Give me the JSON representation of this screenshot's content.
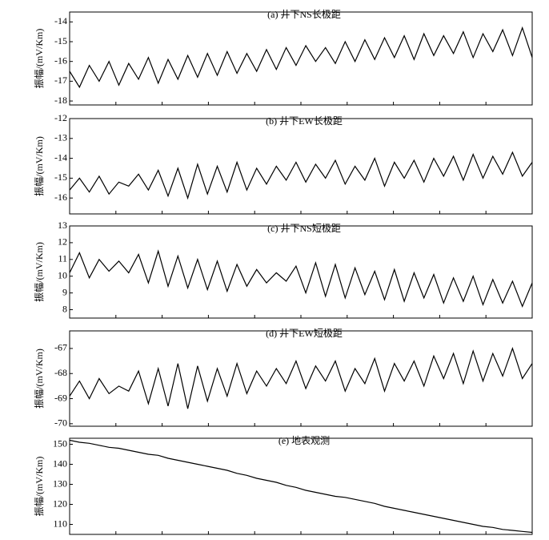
{
  "chart_data": [
    {
      "type": "line",
      "title": "(a) 井下NS长极距",
      "ylabel": "振幅/(mV/Km)",
      "color": "#000000",
      "ylim": [
        -18.2,
        -13.5
      ],
      "yticks": [
        -18,
        -17,
        -16,
        -15,
        -14
      ],
      "values": [
        -16.5,
        -17.3,
        -16.2,
        -17.0,
        -16.0,
        -17.2,
        -16.1,
        -16.9,
        -15.8,
        -17.1,
        -15.9,
        -16.9,
        -15.7,
        -16.8,
        -15.6,
        -16.7,
        -15.5,
        -16.6,
        -15.6,
        -16.5,
        -15.4,
        -16.4,
        -15.3,
        -16.2,
        -15.2,
        -16.0,
        -15.3,
        -16.1,
        -15.0,
        -16.0,
        -14.9,
        -15.9,
        -14.8,
        -15.8,
        -14.7,
        -15.9,
        -14.6,
        -15.7,
        -14.7,
        -15.6,
        -14.5,
        -15.8,
        -14.6,
        -15.5,
        -14.4,
        -15.7,
        -14.3,
        -15.8
      ]
    },
    {
      "type": "line",
      "title": "(b) 井下EW长极距",
      "ylabel": "振幅/(mV/Km)",
      "color": "#000000",
      "ylim": [
        -16.8,
        -12
      ],
      "yticks": [
        -16,
        -15,
        -14,
        -13,
        -12
      ],
      "values": [
        -15.6,
        -15.0,
        -15.7,
        -14.9,
        -15.8,
        -15.2,
        -15.4,
        -14.8,
        -15.6,
        -14.6,
        -15.9,
        -14.5,
        -16.0,
        -14.3,
        -15.8,
        -14.4,
        -15.7,
        -14.2,
        -15.6,
        -14.5,
        -15.3,
        -14.4,
        -15.1,
        -14.2,
        -15.2,
        -14.3,
        -15.0,
        -14.1,
        -15.3,
        -14.4,
        -15.1,
        -14.0,
        -15.4,
        -14.2,
        -15.0,
        -14.1,
        -15.2,
        -14.0,
        -14.9,
        -13.9,
        -15.1,
        -13.8,
        -15.0,
        -13.9,
        -14.8,
        -13.7,
        -14.9,
        -14.2
      ]
    },
    {
      "type": "line",
      "title": "(c) 井下NS短极距",
      "ylabel": "振幅/(mV/Km)",
      "color": "#000000",
      "ylim": [
        7.5,
        13
      ],
      "yticks": [
        8,
        9,
        10,
        11,
        12,
        13
      ],
      "values": [
        10.2,
        11.4,
        9.9,
        11.0,
        10.3,
        10.9,
        10.2,
        11.3,
        9.6,
        11.5,
        9.4,
        11.2,
        9.3,
        11.0,
        9.2,
        10.9,
        9.1,
        10.7,
        9.4,
        10.4,
        9.6,
        10.2,
        9.7,
        10.6,
        9.0,
        10.8,
        8.8,
        10.7,
        8.7,
        10.5,
        8.9,
        10.3,
        8.6,
        10.4,
        8.5,
        10.2,
        8.7,
        10.1,
        8.4,
        9.9,
        8.5,
        10.0,
        8.3,
        9.8,
        8.4,
        9.7,
        8.2,
        9.6
      ]
    },
    {
      "type": "line",
      "title": "(d) 井下EW短极距",
      "ylabel": "振幅/(mV/Km)",
      "color": "#000000",
      "ylim": [
        -70.1,
        -66.3
      ],
      "yticks": [
        -70,
        -69,
        -68,
        -67
      ],
      "values": [
        -68.9,
        -68.3,
        -69.0,
        -68.2,
        -68.8,
        -68.5,
        -68.7,
        -67.9,
        -69.2,
        -67.8,
        -69.3,
        -67.6,
        -69.4,
        -67.7,
        -69.1,
        -67.8,
        -68.9,
        -67.6,
        -68.8,
        -67.9,
        -68.5,
        -67.8,
        -68.4,
        -67.5,
        -68.6,
        -67.7,
        -68.3,
        -67.5,
        -68.7,
        -67.8,
        -68.4,
        -67.4,
        -68.7,
        -67.6,
        -68.3,
        -67.5,
        -68.5,
        -67.3,
        -68.2,
        -67.2,
        -68.4,
        -67.1,
        -68.3,
        -67.2,
        -68.1,
        -67.0,
        -68.2,
        -67.6
      ]
    },
    {
      "type": "line",
      "title": "(e) 地表观测",
      "ylabel": "振幅/(mV/Km)",
      "color": "#000000",
      "ylim": [
        105,
        153
      ],
      "yticks": [
        110,
        120,
        130,
        140,
        150
      ],
      "values": [
        152,
        151,
        150.5,
        149.5,
        148.5,
        148,
        147,
        146,
        145,
        144.5,
        143,
        142,
        141,
        140,
        139,
        138,
        137,
        135.5,
        134.5,
        133,
        132,
        131,
        129.5,
        128.5,
        127,
        126,
        125,
        124,
        123.5,
        122.5,
        121.5,
        120.5,
        119,
        118,
        117,
        116,
        115,
        114,
        113,
        112,
        111,
        110,
        109,
        108.5,
        107.5,
        107,
        106.5,
        106
      ]
    }
  ]
}
